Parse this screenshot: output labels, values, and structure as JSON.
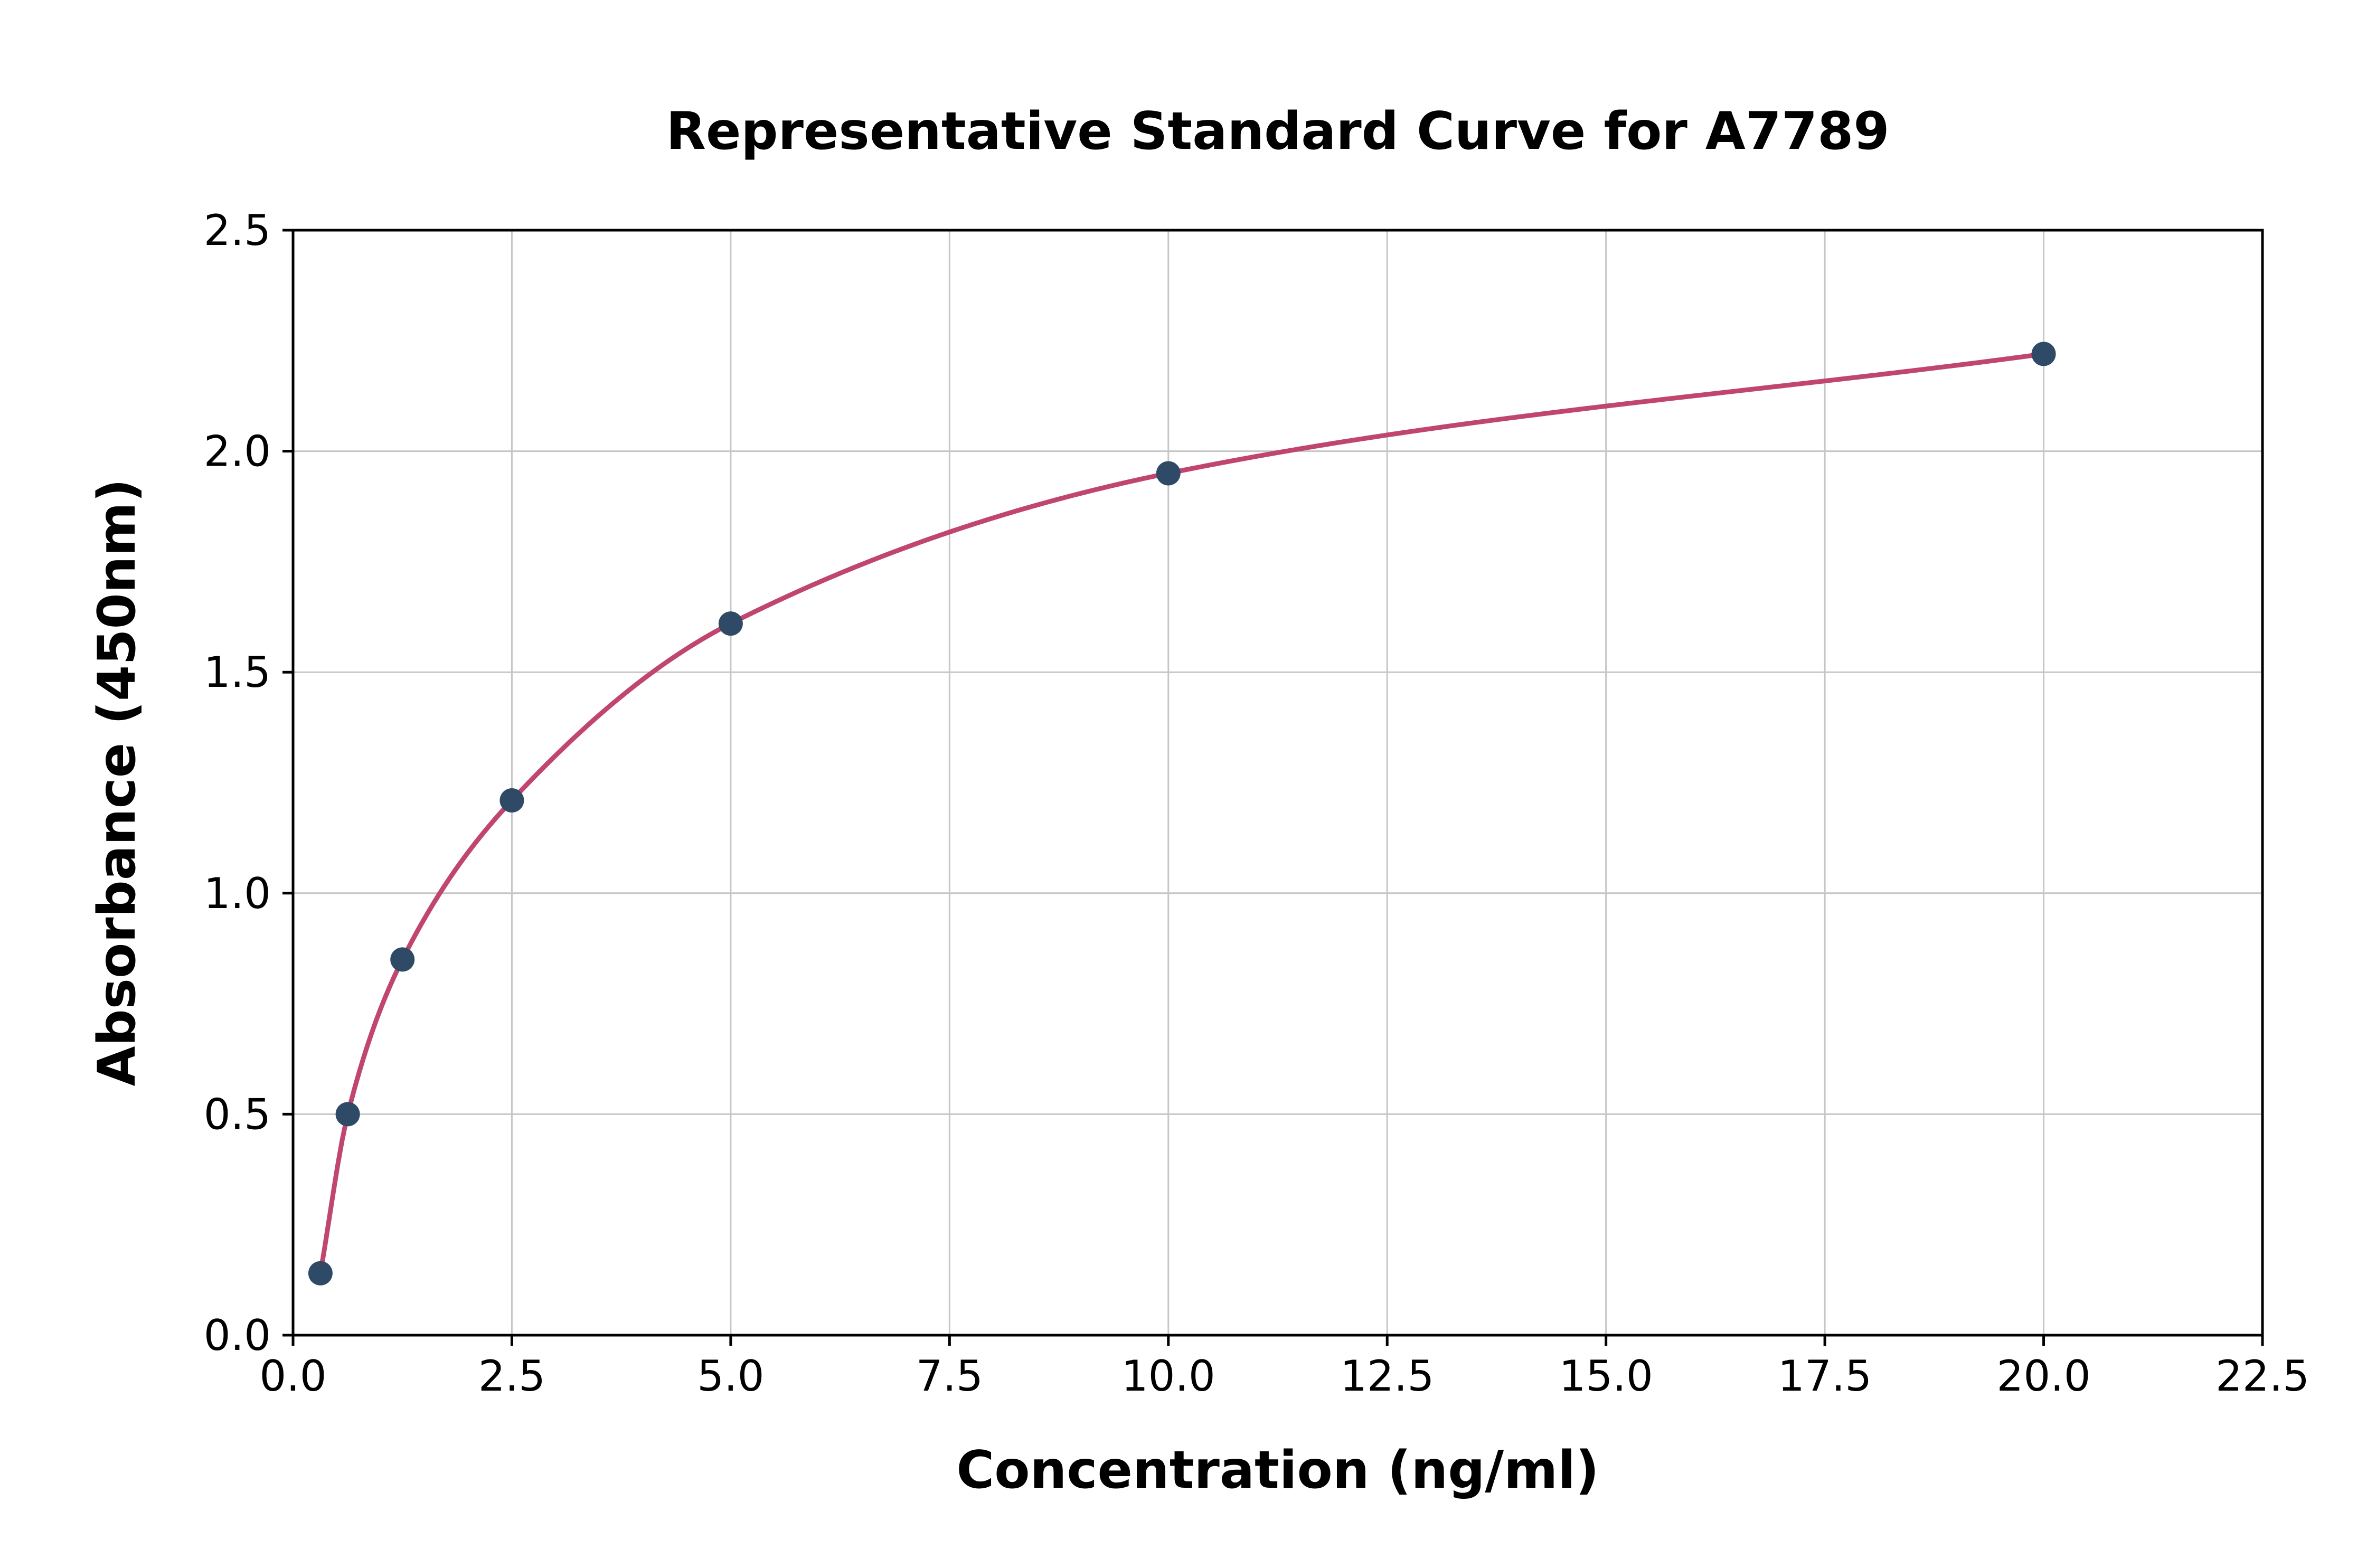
{
  "chart_data": {
    "type": "line",
    "title": "Representative Standard Curve for A7789",
    "xlabel": "Concentration (ng/ml)",
    "ylabel": "Absorbance (450nm)",
    "x": [
      0.313,
      0.625,
      1.25,
      2.5,
      5.0,
      10.0,
      20.0
    ],
    "y": [
      0.14,
      0.5,
      0.85,
      1.21,
      1.61,
      1.95,
      2.22
    ],
    "xlim": [
      0.0,
      22.5
    ],
    "ylim": [
      0.0,
      2.5
    ],
    "x_ticks": [
      0.0,
      2.5,
      5.0,
      7.5,
      10.0,
      12.5,
      15.0,
      17.5,
      20.0,
      22.5
    ],
    "y_ticks": [
      0.0,
      0.5,
      1.0,
      1.5,
      2.0,
      2.5
    ],
    "tick_decimals": 1,
    "grid": true,
    "legend": "none",
    "line_color": "#c0466f",
    "marker_color": "#2e4a66",
    "grid_color": "#c6c6c6",
    "spine_color": "#000000",
    "background_color": "#ffffff"
  }
}
